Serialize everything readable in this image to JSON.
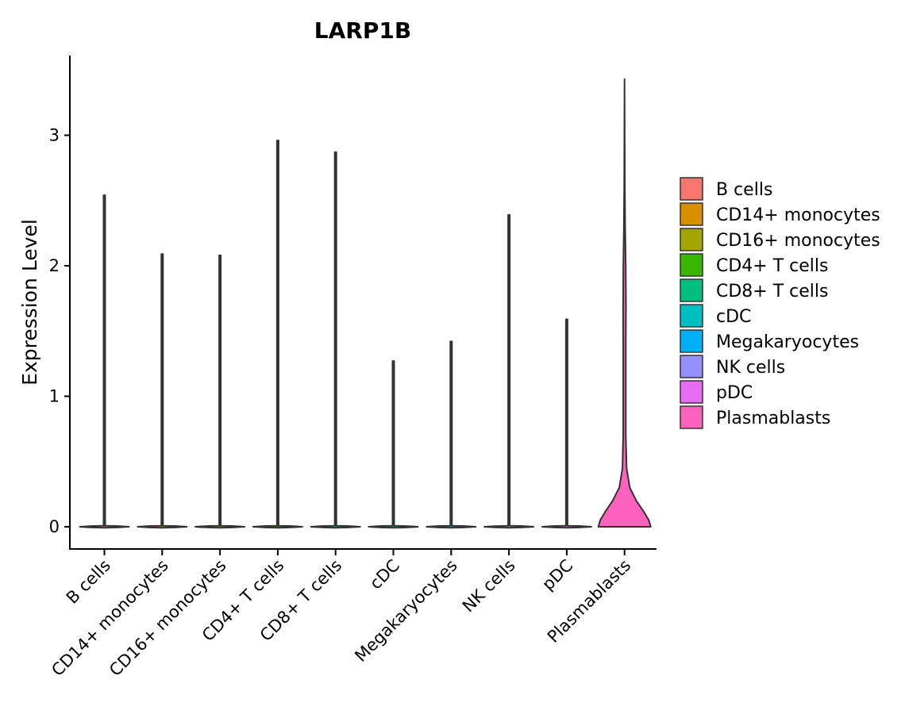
{
  "chart_data": {
    "type": "violin",
    "title": "LARP1B",
    "xlabel": "",
    "ylabel": "Expression Level",
    "ylim": [
      -0.17,
      3.6
    ],
    "yticks": [
      "0",
      "1",
      "2",
      "3"
    ],
    "grid": false,
    "legend_position": "right",
    "categories": [
      "B cells",
      "CD14+ monocytes",
      "CD16+ monocytes",
      "CD4+ T cells",
      "CD8+ T cells",
      "cDC",
      "Megakaryocytes",
      "NK cells",
      "pDC",
      "Plasmablasts"
    ],
    "max_values": [
      2.54,
      2.09,
      2.08,
      2.96,
      2.87,
      1.27,
      1.42,
      2.39,
      1.59,
      3.43
    ],
    "colors": [
      "#F8766D",
      "#D89000",
      "#A3A500",
      "#39B600",
      "#00BF7D",
      "#00BFC4",
      "#00B0F6",
      "#9590FF",
      "#E76BF3",
      "#FF62BC"
    ]
  }
}
